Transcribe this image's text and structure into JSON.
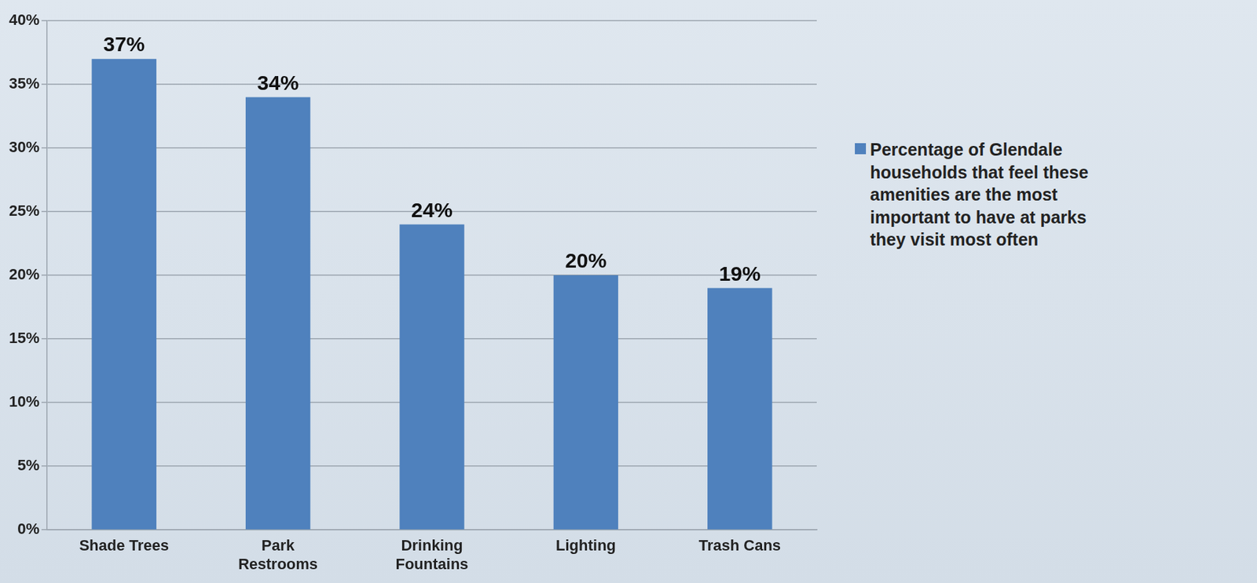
{
  "chart_data": {
    "type": "bar",
    "categories": [
      "Shade Trees",
      "Park Restrooms",
      "Drinking Fountains",
      "Lighting",
      "Trash Cans"
    ],
    "series": [
      {
        "name": "Percentage of Glendale households that feel these amenities are the most important to have at parks they visit most often",
        "color": "#4f81bd",
        "values": [
          37,
          34,
          24,
          20,
          19
        ],
        "value_labels": [
          "37%",
          "34%",
          "24%",
          "20%",
          "19%"
        ]
      }
    ],
    "ylim": [
      0,
      40
    ],
    "yticks": [
      {
        "value": 0,
        "label": "0%"
      },
      {
        "value": 5,
        "label": "5%"
      },
      {
        "value": 10,
        "label": "10%"
      },
      {
        "value": 15,
        "label": "15%"
      },
      {
        "value": 20,
        "label": "20%"
      },
      {
        "value": 25,
        "label": "25%"
      },
      {
        "value": 30,
        "label": "30%"
      },
      {
        "value": 35,
        "label": "35%"
      },
      {
        "value": 40,
        "label": "40%"
      }
    ],
    "grid": true,
    "legend": "right",
    "data_labels": true
  }
}
